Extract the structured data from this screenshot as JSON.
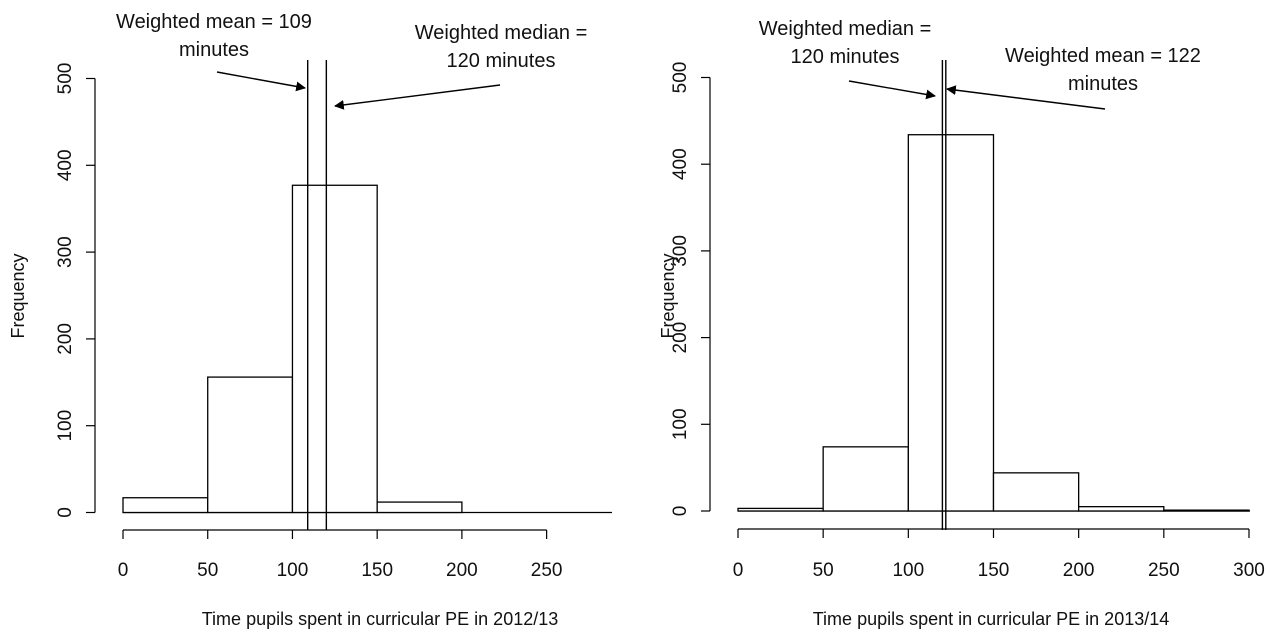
{
  "chart_data": [
    {
      "type": "bar",
      "xlabel": "Time pupils spent in curricular PE in 2012/13",
      "ylabel": "Frequency",
      "xlim": [
        0,
        290
      ],
      "ylim": [
        0,
        500
      ],
      "x_ticks": [
        0,
        50,
        100,
        150,
        200,
        250
      ],
      "y_ticks": [
        0,
        100,
        200,
        300,
        400,
        500
      ],
      "bins": [
        {
          "from": 0,
          "to": 50,
          "value": 17
        },
        {
          "from": 50,
          "to": 100,
          "value": 156
        },
        {
          "from": 100,
          "to": 150,
          "value": 377
        },
        {
          "from": 150,
          "to": 200,
          "value": 12
        }
      ],
      "vlines": [
        109,
        120
      ],
      "annotations": [
        {
          "lines": [
            "Weighted mean = 109",
            "minutes"
          ],
          "target": 109
        },
        {
          "lines": [
            "Weighted median =",
            "120 minutes"
          ],
          "target": 120
        }
      ]
    },
    {
      "type": "bar",
      "xlabel": "Time pupils spent in curricular PE in 2013/14",
      "ylabel": "Frequency",
      "xlim": [
        0,
        300
      ],
      "ylim": [
        0,
        500
      ],
      "x_ticks": [
        0,
        50,
        100,
        150,
        200,
        250,
        300
      ],
      "y_ticks": [
        0,
        100,
        200,
        300,
        400,
        500
      ],
      "bins": [
        {
          "from": 0,
          "to": 50,
          "value": 3
        },
        {
          "from": 50,
          "to": 100,
          "value": 74
        },
        {
          "from": 100,
          "to": 150,
          "value": 434
        },
        {
          "from": 150,
          "to": 200,
          "value": 44
        },
        {
          "from": 200,
          "to": 250,
          "value": 5
        },
        {
          "from": 250,
          "to": 300,
          "value": 1
        }
      ],
      "vlines": [
        120,
        122
      ],
      "annotations": [
        {
          "lines": [
            "Weighted median =",
            "120 minutes"
          ],
          "target": 120
        },
        {
          "lines": [
            "Weighted mean = 122",
            "minutes"
          ],
          "target": 122
        }
      ]
    }
  ]
}
